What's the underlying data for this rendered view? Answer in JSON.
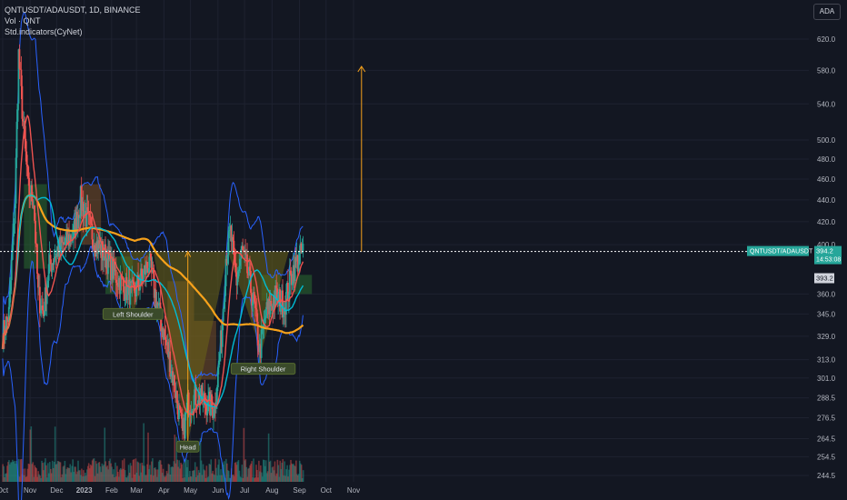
{
  "header": {
    "symbol_line": "QNTUSDT/ADAUSDT, 1D, BINANCE",
    "vol_line": "Vol · QNT",
    "indicator_line": "Std.indicators(CyNet)",
    "quote_currency": "ADA"
  },
  "price_badge": {
    "symbol": "QNTUSDT/ADAUSDT",
    "price": "394.2",
    "countdown": "14:53:08",
    "secondary_price": "393.2"
  },
  "colors": {
    "background": "#131722",
    "up": "#26a69a",
    "down": "#ef5350",
    "pattern_fill": "#6b6518",
    "bollinger": "#2962ff",
    "ma_long": "#f7a21b",
    "ma_mid": "#00bcd4",
    "ma_short": "#ef5350",
    "cloud_green": "#2e7d32",
    "cloud_brown": "#8d5a2b",
    "neckline": "#ffffff",
    "target_arrow": "#f7a21b"
  },
  "chart_data": {
    "type": "candlestick",
    "title": "QNTUSDT/ADAUSDT, 1D, BINANCE",
    "y_axis_scale": "log",
    "y_ticks": [
      620.0,
      580.0,
      540.0,
      500.0,
      480.0,
      460.0,
      440.0,
      420.0,
      400.0,
      360.0,
      345.0,
      329.0,
      313.0,
      301.0,
      288.5,
      276.5,
      264.5,
      254.5,
      244.5
    ],
    "x_ticks": [
      "Oct",
      "Nov",
      "Dec",
      "2023",
      "Feb",
      "Mar",
      "Apr",
      "May",
      "Jun",
      "Jul",
      "Aug",
      "Sep",
      "Oct",
      "Nov"
    ],
    "ylim": [
      240,
      650
    ],
    "current_price": 394.2,
    "neckline_price": 394.2,
    "target_price": 585,
    "grid": true,
    "price_path": [
      {
        "x": "2022-10-01",
        "y": 330
      },
      {
        "x": "2022-10-08",
        "y": 345
      },
      {
        "x": "2022-10-15",
        "y": 440
      },
      {
        "x": "2022-10-19",
        "y": 600
      },
      {
        "x": "2022-10-24",
        "y": 520
      },
      {
        "x": "2022-10-30",
        "y": 450
      },
      {
        "x": "2022-11-05",
        "y": 440
      },
      {
        "x": "2022-11-10",
        "y": 360
      },
      {
        "x": "2022-11-16",
        "y": 345
      },
      {
        "x": "2022-11-22",
        "y": 380
      },
      {
        "x": "2022-12-01",
        "y": 395
      },
      {
        "x": "2022-12-10",
        "y": 400
      },
      {
        "x": "2022-12-20",
        "y": 410
      },
      {
        "x": "2022-12-28",
        "y": 440
      },
      {
        "x": "2023-01-05",
        "y": 420
      },
      {
        "x": "2023-01-15",
        "y": 400
      },
      {
        "x": "2023-01-25",
        "y": 390
      },
      {
        "x": "2023-02-05",
        "y": 375
      },
      {
        "x": "2023-02-15",
        "y": 365
      },
      {
        "x": "2023-02-25",
        "y": 360
      },
      {
        "x": "2023-03-05",
        "y": 370
      },
      {
        "x": "2023-03-15",
        "y": 385
      },
      {
        "x": "2023-03-25",
        "y": 350
      },
      {
        "x": "2023-04-05",
        "y": 320
      },
      {
        "x": "2023-04-15",
        "y": 290
      },
      {
        "x": "2023-04-22",
        "y": 266
      },
      {
        "x": "2023-04-28",
        "y": 285
      },
      {
        "x": "2023-05-08",
        "y": 290
      },
      {
        "x": "2023-05-20",
        "y": 285
      },
      {
        "x": "2023-05-28",
        "y": 282
      },
      {
        "x": "2023-06-05",
        "y": 330
      },
      {
        "x": "2023-06-10",
        "y": 390
      },
      {
        "x": "2023-06-15",
        "y": 410
      },
      {
        "x": "2023-06-22",
        "y": 370
      },
      {
        "x": "2023-06-28",
        "y": 395
      },
      {
        "x": "2023-07-05",
        "y": 375
      },
      {
        "x": "2023-07-12",
        "y": 350
      },
      {
        "x": "2023-07-18",
        "y": 318
      },
      {
        "x": "2023-07-25",
        "y": 345
      },
      {
        "x": "2023-08-05",
        "y": 358
      },
      {
        "x": "2023-08-15",
        "y": 352
      },
      {
        "x": "2023-08-25",
        "y": 380
      },
      {
        "x": "2023-09-05",
        "y": 394.2
      }
    ],
    "annotations": [
      {
        "text": "Left Shoulder",
        "x": "2023-02-25",
        "y": 345
      },
      {
        "text": "Head",
        "x": "2023-04-28",
        "y": 260
      },
      {
        "text": "Right Shoulder",
        "x": "2023-07-22",
        "y": 307
      }
    ]
  }
}
